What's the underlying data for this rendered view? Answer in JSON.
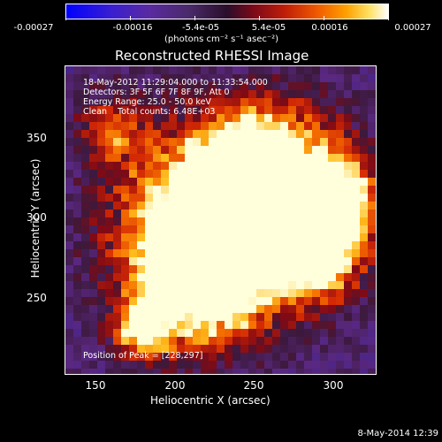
{
  "colorbar": {
    "ticks": [
      "-0.00027",
      "-0.00016",
      "-5.4e-05",
      "5.4e-05",
      "0.00016",
      "0.00027"
    ],
    "unit_label": "(photons cm⁻² s⁻¹ asec⁻²)"
  },
  "title": "Reconstructed RHESSI Image",
  "info": {
    "time_range": "18-May-2012 11:29:04.000 to 11:33:54.000",
    "detectors": "Detectors: 3F 5F 6F 7F 8F 9F, Att 0",
    "energy": "Energy Range: 25.0 - 50.0 keV",
    "method": "Clean    Total counts: 6.48E+03",
    "peak": "Position of Peak = [228,297]"
  },
  "axes": {
    "xlabel": "Heliocentric X (arcsec)",
    "ylabel": "Heliocentric Y (arcsec)",
    "xticks": [
      "150",
      "200",
      "250",
      "300"
    ],
    "yticks": [
      "350",
      "300",
      "250"
    ]
  },
  "footer": "8-May-2014 12:39"
}
